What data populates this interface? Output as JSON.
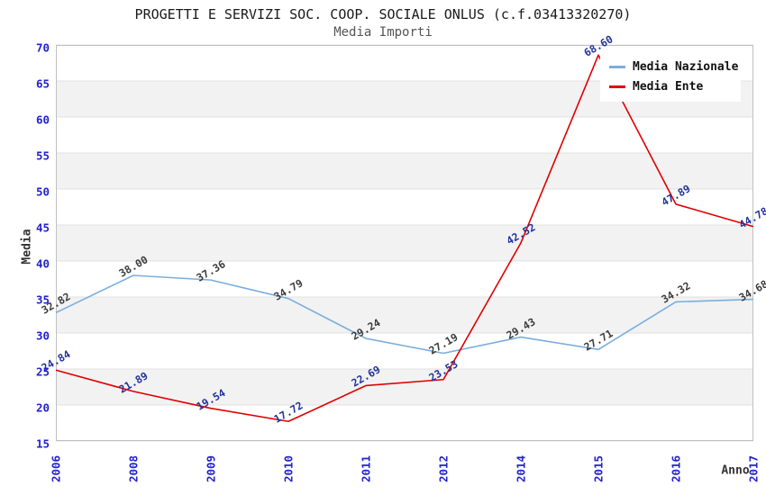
{
  "title": "PROGETTI E SERVIZI SOC. COOP. SOCIALE ONLUS (c.f.03413320270)",
  "subtitle": "Media Importi",
  "axes": {
    "y_label": "Media",
    "x_label": "Anno",
    "y_ticks": [
      70,
      65,
      60,
      55,
      50,
      45,
      40,
      35,
      30,
      25,
      20,
      15
    ]
  },
  "legend": {
    "position": "top-right",
    "items": [
      {
        "label": "Media Nazionale",
        "color": "#7aaede"
      },
      {
        "label": "Media Ente",
        "color": "#e00000"
      }
    ]
  },
  "colors": {
    "band": "#f2f2f2",
    "gridline": "#e0e0e0",
    "plot_border": "#c0c0c0",
    "axis_tick_text": "#2222cc",
    "label_nazionale": "#3c3c3c",
    "label_ente": "#22339b"
  },
  "chart_data": {
    "type": "line",
    "title": "Media Importi",
    "xlabel": "Anno",
    "ylabel": "Media",
    "categories": [
      "2006",
      "2008",
      "2009",
      "2010",
      "2011",
      "2012",
      "2014",
      "2015",
      "2016",
      "2017"
    ],
    "series": [
      {
        "name": "Media Nazionale",
        "color": "#7aaede",
        "label_color": "#3c3c3c",
        "values": [
          32.82,
          38.0,
          37.36,
          34.79,
          29.24,
          27.19,
          29.43,
          27.71,
          34.32,
          34.68
        ]
      },
      {
        "name": "Media Ente",
        "color": "#e00000",
        "label_color": "#22339b",
        "values": [
          24.84,
          21.89,
          19.54,
          17.72,
          22.69,
          23.53,
          42.52,
          68.6,
          47.89,
          44.78
        ]
      }
    ],
    "ylim": [
      15,
      70
    ],
    "y_step": 5,
    "grid": true,
    "legend_position": "top-right",
    "value_labels_decimals": 2
  }
}
